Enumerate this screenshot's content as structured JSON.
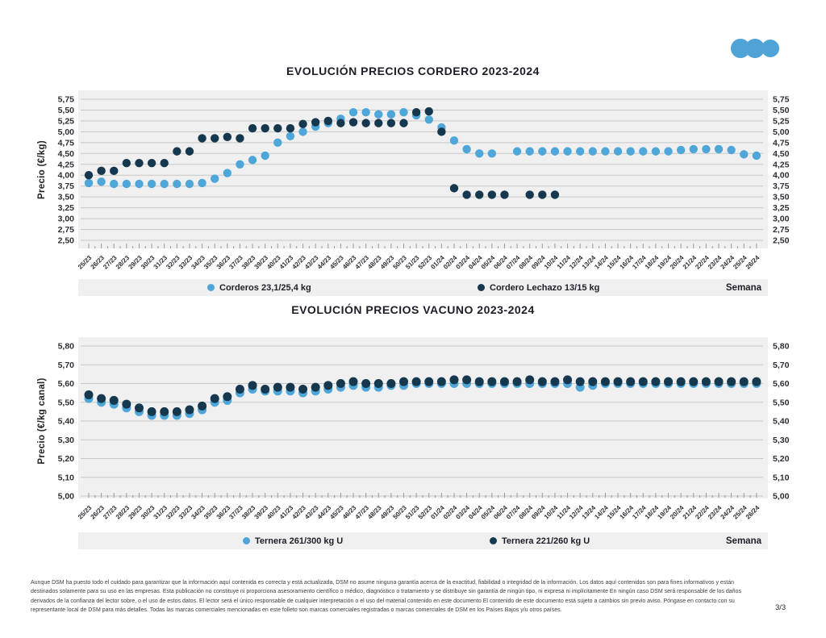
{
  "logo": {
    "name": "three-dots-logo",
    "color": "#4FA3D6"
  },
  "footer": {
    "disclaimer": "Aunque DSM ha puesto todo el cuidado para garantizar que la información aquí contenida es correcta y está actualizada, DSM no asume ninguna garantía acerca de la exactitud, fiabilidad o integridad de la información. Los datos aquí contenidos son para fines informativos y están destinados solamente para su uso en las empresas. Esta publicación no constituye ni proporciona asesoramiento científico o médico, diagnóstico o tratamiento y se distribuye sin garantía de ningún tipo, ni expresa ni implícitamente En ningún caso DSM será responsable de los daños derivados de la confianza del lector sobre, o el uso de estos datos. El lector será el único responsable de cualquier interpretación o el uso del material contenido en este documento El contenido de este documento está sujeto a cambios sin previo aviso. Póngase en contacto con su representante local de DSM para más detalles. Todas las marcas comerciales mencionadas en este folleto son marcas comerciales registradas o marcas comerciales de DSM en los Países Bajos y/u otros países.",
    "page_indicator": "3/3"
  },
  "chart_data": [
    {
      "type": "scatter",
      "title": "EVOLUCIÓN PRECIOS CORDERO 2023-2024",
      "ylabel": "Precio (€/kg)",
      "xlabel": "Semana",
      "ylim": [
        2.5,
        5.75
      ],
      "ytick_step": 0.25,
      "grid": true,
      "legend_position": "bottom",
      "categories": [
        "25/23",
        "26/23",
        "27/23",
        "28/23",
        "29/23",
        "30/23",
        "31/23",
        "32/23",
        "33/23",
        "34/23",
        "35/23",
        "36/23",
        "37/23",
        "38/23",
        "39/23",
        "40/23",
        "41/23",
        "42/23",
        "43/23",
        "44/23",
        "45/23",
        "46/23",
        "47/23",
        "48/23",
        "49/23",
        "50/23",
        "51/23",
        "52/23",
        "01/24",
        "02/24",
        "03/24",
        "04/24",
        "05/24",
        "06/24",
        "07/24",
        "08/24",
        "09/24",
        "10/24",
        "11/24",
        "12/24",
        "13/24",
        "14/24",
        "15/24",
        "16/24",
        "17/24",
        "18/24",
        "19/24",
        "20/24",
        "21/24",
        "22/24",
        "23/24",
        "24/24",
        "25/24",
        "26/24"
      ],
      "series": [
        {
          "name": "Corderos 23,1/25,4 kg",
          "color": "#4FA7D9",
          "values": [
            3.82,
            3.85,
            3.8,
            3.8,
            3.8,
            3.8,
            3.8,
            3.8,
            3.8,
            3.82,
            3.92,
            4.05,
            4.25,
            4.35,
            4.45,
            4.75,
            4.9,
            5.0,
            5.12,
            5.2,
            5.3,
            5.45,
            5.45,
            5.4,
            5.4,
            5.45,
            5.38,
            5.28,
            5.1,
            4.8,
            4.6,
            4.5,
            4.5,
            null,
            4.55,
            4.55,
            4.55,
            4.55,
            4.55,
            4.55,
            4.55,
            4.55,
            4.55,
            4.55,
            4.55,
            4.55,
            4.55,
            4.58,
            4.6,
            4.6,
            4.6,
            4.58,
            4.48,
            4.45
          ]
        },
        {
          "name": "Cordero Lechazo 13/15 kg",
          "color": "#16384E",
          "values": [
            4.0,
            4.1,
            4.1,
            4.28,
            4.28,
            4.28,
            4.28,
            4.55,
            4.55,
            4.85,
            4.85,
            4.88,
            4.85,
            5.08,
            5.08,
            5.08,
            5.08,
            5.18,
            5.22,
            5.25,
            5.2,
            5.22,
            5.2,
            5.2,
            5.2,
            5.2,
            5.45,
            5.47,
            5.0,
            3.7,
            3.55,
            3.55,
            3.55,
            3.55,
            null,
            3.55,
            3.55,
            3.55,
            null,
            null,
            null,
            null,
            null,
            null,
            null,
            null,
            null,
            null,
            null,
            null,
            null,
            null,
            null,
            null
          ]
        }
      ]
    },
    {
      "type": "scatter",
      "title": "EVOLUCIÓN PRECIOS VACUNO 2023-2024",
      "ylabel": "Precio (€/kg canal)",
      "xlabel": "Semana",
      "ylim": [
        5.0,
        5.8
      ],
      "ytick_step": 0.1,
      "grid": true,
      "legend_position": "bottom",
      "categories": [
        "25/23",
        "26/23",
        "27/23",
        "28/23",
        "29/23",
        "30/23",
        "31/23",
        "32/23",
        "33/23",
        "34/23",
        "35/23",
        "36/23",
        "37/23",
        "38/23",
        "39/23",
        "40/23",
        "41/23",
        "42/23",
        "43/23",
        "44/23",
        "45/23",
        "46/23",
        "47/23",
        "48/23",
        "49/23",
        "50/23",
        "51/23",
        "52/23",
        "01/24",
        "02/24",
        "03/24",
        "04/24",
        "05/24",
        "06/24",
        "07/24",
        "08/24",
        "09/24",
        "10/24",
        "11/24",
        "12/24",
        "13/24",
        "14/24",
        "15/24",
        "16/24",
        "17/24",
        "18/24",
        "19/24",
        "20/24",
        "21/24",
        "22/24",
        "23/24",
        "24/24",
        "25/24",
        "26/24"
      ],
      "series": [
        {
          "name": "Ternera 261/300 kg U",
          "color": "#4FA7D9",
          "values": [
            5.52,
            5.5,
            5.49,
            5.47,
            5.45,
            5.43,
            5.43,
            5.43,
            5.44,
            5.46,
            5.5,
            5.51,
            5.55,
            5.57,
            5.56,
            5.56,
            5.56,
            5.55,
            5.56,
            5.57,
            5.58,
            5.59,
            5.58,
            5.58,
            5.59,
            5.59,
            5.6,
            5.6,
            5.6,
            5.6,
            5.6,
            5.6,
            5.6,
            5.6,
            5.6,
            5.6,
            5.6,
            5.6,
            5.6,
            5.58,
            5.59,
            5.6,
            5.6,
            5.6,
            5.6,
            5.6,
            5.6,
            5.6,
            5.6,
            5.6,
            5.6,
            5.6,
            5.6,
            5.6
          ]
        },
        {
          "name": "Ternera 221/260 kg U",
          "color": "#16384E",
          "values": [
            5.54,
            5.52,
            5.51,
            5.49,
            5.47,
            5.45,
            5.45,
            5.45,
            5.46,
            5.48,
            5.52,
            5.53,
            5.57,
            5.59,
            5.57,
            5.58,
            5.58,
            5.57,
            5.58,
            5.59,
            5.6,
            5.61,
            5.6,
            5.6,
            5.6,
            5.61,
            5.61,
            5.61,
            5.61,
            5.62,
            5.62,
            5.61,
            5.61,
            5.61,
            5.61,
            5.62,
            5.61,
            5.61,
            5.62,
            5.61,
            5.61,
            5.61,
            5.61,
            5.61,
            5.61,
            5.61,
            5.61,
            5.61,
            5.61,
            5.61,
            5.61,
            5.61,
            5.61,
            5.61
          ]
        }
      ]
    }
  ]
}
